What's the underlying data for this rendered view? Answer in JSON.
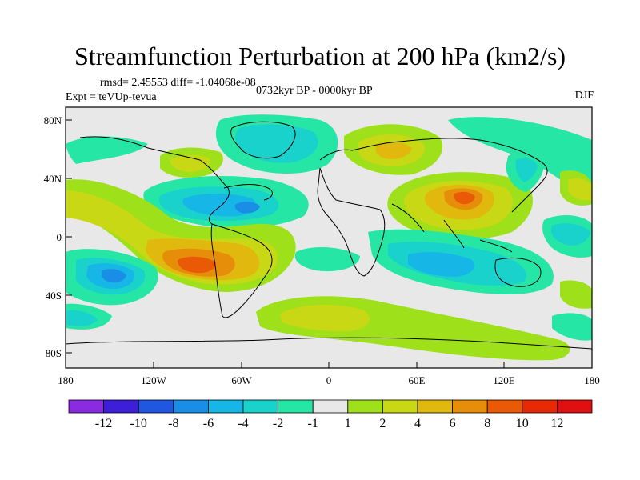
{
  "title": "Streamfunction Perturbation at 200 hPa (km2/s)",
  "stats": "rmsd= 2.45553 diff= -1.04068e-08",
  "experiment": "Expt = teVUp-tevua",
  "period": "0732kyr BP - 0000kyr BP",
  "season": "DJF",
  "lat_ticks": [
    "80N",
    "40N",
    "0",
    "40S",
    "80S"
  ],
  "lon_ticks": [
    "180",
    "120W",
    "60W",
    "0",
    "60E",
    "120E",
    "180"
  ],
  "colorbar": {
    "labels": [
      "-12",
      "-10",
      "-8",
      "-6",
      "-4",
      "-2",
      "-1",
      "1",
      "2",
      "4",
      "6",
      "8",
      "10",
      "12"
    ],
    "colors": [
      "#8a2be2",
      "#3c1fd6",
      "#1f57e0",
      "#1a8ee6",
      "#16b6e6",
      "#1ad2cc",
      "#26e6a6",
      "#e8e8e8",
      "#9ee01a",
      "#c8d814",
      "#e0b80e",
      "#e68e0a",
      "#ea5a06",
      "#e82a04",
      "#e01010"
    ]
  }
}
